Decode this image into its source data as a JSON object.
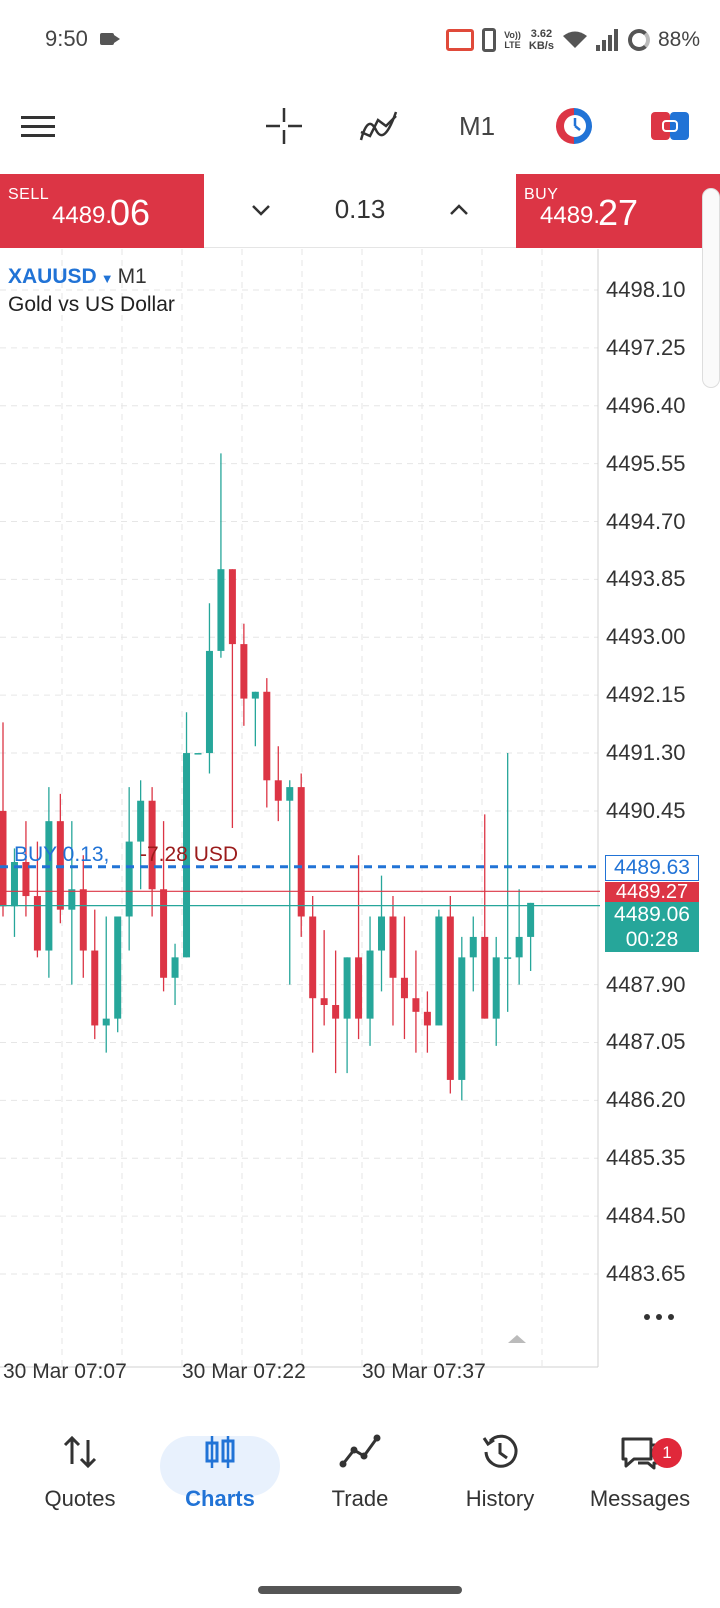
{
  "status_bar": {
    "time": "9:50",
    "lte_top": "Vo))",
    "lte_bottom": "LTE",
    "netspeed_value": "3.62",
    "netspeed_unit": "KB/s",
    "battery": "88%"
  },
  "toolbar": {
    "timeframe": "M1",
    "icons": [
      "menu-icon",
      "crosshair-icon",
      "indicator-icon",
      "one-chart-icon",
      "chart-toggle-icon"
    ]
  },
  "trade_panel": {
    "sell_label": "SELL",
    "sell_price_small": "4489.",
    "sell_price_big": "06",
    "buy_label": "BUY",
    "buy_price_small": "4489.",
    "buy_price_big": "27",
    "volume": "0.13"
  },
  "chart": {
    "symbol": "XAUUSD",
    "timeframe": "M1",
    "description": "Gold vs US Dollar",
    "price_axis": [
      "4498.10",
      "4497.25",
      "4496.40",
      "4495.55",
      "4494.70",
      "4493.85",
      "4493.00",
      "4492.15",
      "4491.30",
      "4490.45",
      "4487.90",
      "4487.05",
      "4486.20",
      "4485.35",
      "4484.50",
      "4483.65"
    ],
    "time_axis": [
      "30 Mar 07:07",
      "30 Mar 07:22",
      "30 Mar 07:37"
    ],
    "position_label": "BUY 0.13,",
    "position_pl": "-7.28 USD",
    "position_price": "4489.63",
    "ask_price": "4489.27",
    "bid_price": "4489.06",
    "bar_countdown": "00:28",
    "colors": {
      "bull": "#26a69a",
      "bear": "#dc3545",
      "position": "#2173d6"
    }
  },
  "chart_data": {
    "type": "candlestick",
    "title": "XAUUSD M1",
    "ylim": [
      4483.3,
      4498.6
    ],
    "x_ticks": [
      "30 Mar 07:07",
      "30 Mar 07:22",
      "30 Mar 07:37"
    ],
    "candles": [
      {
        "o": 4490.45,
        "h": 4491.75,
        "l": 4488.9,
        "c": 4489.05
      },
      {
        "o": 4489.05,
        "h": 4489.9,
        "l": 4488.6,
        "c": 4489.7
      },
      {
        "o": 4489.7,
        "h": 4490.3,
        "l": 4488.9,
        "c": 4489.2
      },
      {
        "o": 4489.2,
        "h": 4490.0,
        "l": 4488.3,
        "c": 4488.4
      },
      {
        "o": 4488.4,
        "h": 4490.8,
        "l": 4488.0,
        "c": 4490.3
      },
      {
        "o": 4490.3,
        "h": 4490.7,
        "l": 4488.8,
        "c": 4489.0
      },
      {
        "o": 4489.0,
        "h": 4490.3,
        "l": 4487.9,
        "c": 4489.3
      },
      {
        "o": 4489.3,
        "h": 4489.8,
        "l": 4488.0,
        "c": 4488.4
      },
      {
        "o": 4488.4,
        "h": 4489.0,
        "l": 4487.1,
        "c": 4487.3
      },
      {
        "o": 4487.3,
        "h": 4488.9,
        "l": 4486.9,
        "c": 4487.4
      },
      {
        "o": 4487.4,
        "h": 4488.9,
        "l": 4487.2,
        "c": 4488.9
      },
      {
        "o": 4488.9,
        "h": 4490.8,
        "l": 4488.4,
        "c": 4490.0
      },
      {
        "o": 4490.0,
        "h": 4490.9,
        "l": 4489.3,
        "c": 4490.6
      },
      {
        "o": 4490.6,
        "h": 4490.8,
        "l": 4488.9,
        "c": 4489.3
      },
      {
        "o": 4489.3,
        "h": 4490.3,
        "l": 4487.8,
        "c": 4488.0
      },
      {
        "o": 4488.0,
        "h": 4488.5,
        "l": 4487.6,
        "c": 4488.3
      },
      {
        "o": 4488.3,
        "h": 4491.9,
        "l": 4488.3,
        "c": 4491.3
      },
      {
        "o": 4491.3,
        "h": 4491.3,
        "l": 4491.3,
        "c": 4491.3
      },
      {
        "o": 4491.3,
        "h": 4493.5,
        "l": 4491.0,
        "c": 4492.8
      },
      {
        "o": 4492.8,
        "h": 4495.7,
        "l": 4492.7,
        "c": 4494.0
      },
      {
        "o": 4494.0,
        "h": 4494.0,
        "l": 4490.2,
        "c": 4492.9
      },
      {
        "o": 4492.9,
        "h": 4493.2,
        "l": 4491.7,
        "c": 4492.1
      },
      {
        "o": 4492.1,
        "h": 4492.2,
        "l": 4491.4,
        "c": 4492.2
      },
      {
        "o": 4492.2,
        "h": 4492.4,
        "l": 4490.5,
        "c": 4490.9
      },
      {
        "o": 4490.9,
        "h": 4491.4,
        "l": 4490.3,
        "c": 4490.6
      },
      {
        "o": 4490.6,
        "h": 4490.9,
        "l": 4487.9,
        "c": 4490.8
      },
      {
        "o": 4490.8,
        "h": 4491.0,
        "l": 4488.6,
        "c": 4488.9
      },
      {
        "o": 4488.9,
        "h": 4489.2,
        "l": 4486.9,
        "c": 4487.7
      },
      {
        "o": 4487.7,
        "h": 4488.7,
        "l": 4487.3,
        "c": 4487.6
      },
      {
        "o": 4487.6,
        "h": 4488.4,
        "l": 4486.6,
        "c": 4487.4
      },
      {
        "o": 4487.4,
        "h": 4488.3,
        "l": 4486.6,
        "c": 4488.3
      },
      {
        "o": 4488.3,
        "h": 4489.8,
        "l": 4487.1,
        "c": 4487.4
      },
      {
        "o": 4487.4,
        "h": 4488.9,
        "l": 4487.0,
        "c": 4488.4
      },
      {
        "o": 4488.4,
        "h": 4489.5,
        "l": 4487.8,
        "c": 4488.9
      },
      {
        "o": 4488.9,
        "h": 4489.2,
        "l": 4487.3,
        "c": 4488.0
      },
      {
        "o": 4488.0,
        "h": 4488.9,
        "l": 4487.1,
        "c": 4487.7
      },
      {
        "o": 4487.7,
        "h": 4488.4,
        "l": 4486.9,
        "c": 4487.5
      },
      {
        "o": 4487.5,
        "h": 4487.8,
        "l": 4486.9,
        "c": 4487.3
      },
      {
        "o": 4487.3,
        "h": 4489.0,
        "l": 4487.3,
        "c": 4488.9
      },
      {
        "o": 4488.9,
        "h": 4489.2,
        "l": 4486.3,
        "c": 4486.5
      },
      {
        "o": 4486.5,
        "h": 4488.6,
        "l": 4486.2,
        "c": 4488.3
      },
      {
        "o": 4488.3,
        "h": 4488.9,
        "l": 4487.8,
        "c": 4488.6
      },
      {
        "o": 4488.6,
        "h": 4490.4,
        "l": 4487.4,
        "c": 4487.4
      },
      {
        "o": 4487.4,
        "h": 4488.6,
        "l": 4487.0,
        "c": 4488.3
      },
      {
        "o": 4488.3,
        "h": 4491.3,
        "l": 4487.5,
        "c": 4488.3
      },
      {
        "o": 4488.3,
        "h": 4489.3,
        "l": 4487.9,
        "c": 4488.6
      },
      {
        "o": 4488.6,
        "h": 4489.1,
        "l": 4488.1,
        "c": 4489.1
      }
    ],
    "lines": [
      {
        "name": "BUY 0.13",
        "value": 4489.63
      },
      {
        "name": "Ask",
        "value": 4489.27
      },
      {
        "name": "Bid",
        "value": 4489.06
      }
    ]
  },
  "bottom_nav": {
    "items": [
      {
        "label": "Quotes"
      },
      {
        "label": "Charts"
      },
      {
        "label": "Trade"
      },
      {
        "label": "History"
      },
      {
        "label": "Messages"
      }
    ],
    "messages_badge": "1"
  }
}
